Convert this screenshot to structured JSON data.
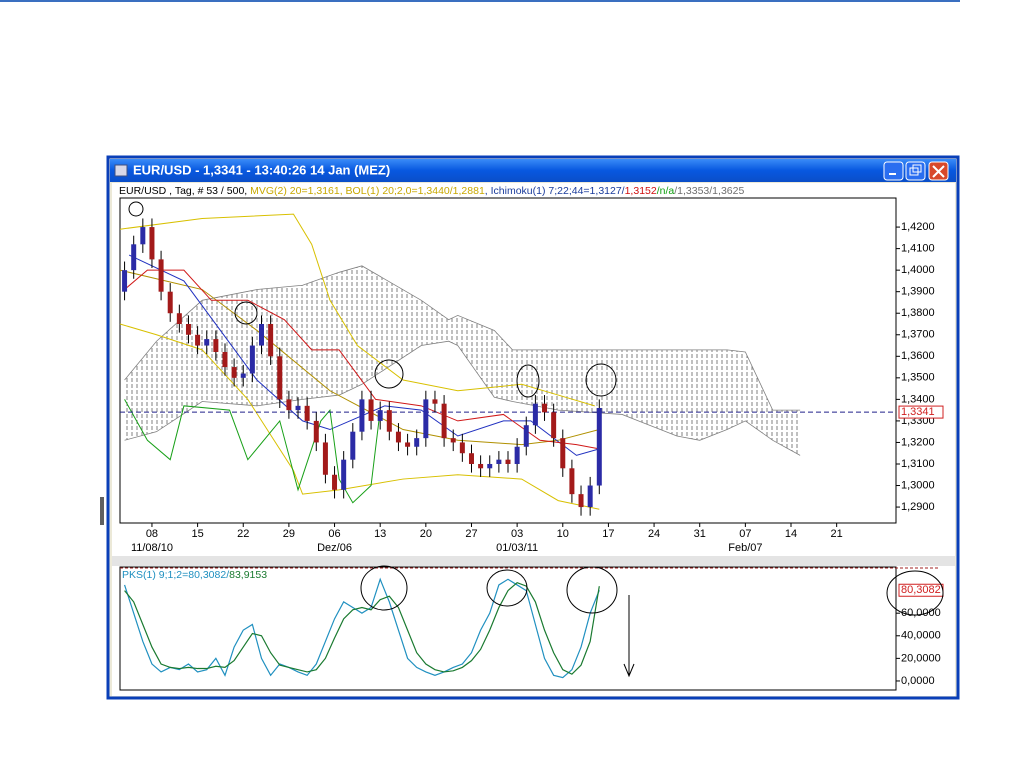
{
  "window": {
    "title": "EUR/USD - 1,3341 - 13:40:26  14 Jan (MEZ)"
  },
  "chart_data": [
    {
      "type": "candlestick",
      "header": [
        {
          "text": "EUR/USD , Tag, # 53 / 500, ",
          "color": "#000000"
        },
        {
          "text": "MVG(2) 20=1,3161, BOL(1) 20;2,0=1,3440/1,2881",
          "color": "#c8a800"
        },
        {
          "text": ", Ichimoku(1) 7;22;44=1,3127/",
          "color": "#1a3c9c"
        },
        {
          "text": "1,3152",
          "color": "#d01010"
        },
        {
          "text": "/n/a",
          "color": "#10a010"
        },
        {
          "text": "/1,3353/1,3625",
          "color": "#707070"
        }
      ],
      "x": [
        0.5,
        1.5,
        2.5,
        3.5,
        4.5,
        5.5,
        6.5,
        7.5,
        8.5,
        9.5,
        10.5,
        11.5,
        12.5,
        13.5,
        14.5,
        15.5,
        16.5,
        17.5,
        18.5,
        19.5,
        20.5,
        21.5,
        22.5,
        23.5,
        24.5,
        25.5,
        26.5,
        27.5,
        28.5,
        29.5,
        30.5,
        31.5,
        32.5,
        33.5,
        34.5,
        35.5,
        36.5,
        37.5,
        38.5,
        39.5,
        40.5,
        41.5,
        42.5,
        43.5,
        44.5,
        45.5,
        46.5,
        47.5,
        48.5,
        49.5,
        50.5,
        51.5,
        52.5
      ],
      "open": [
        1.39,
        1.4,
        1.412,
        1.42,
        1.405,
        1.39,
        1.38,
        1.375,
        1.37,
        1.365,
        1.368,
        1.362,
        1.355,
        1.35,
        1.352,
        1.365,
        1.375,
        1.36,
        1.34,
        1.335,
        1.337,
        1.33,
        1.32,
        1.305,
        1.298,
        1.312,
        1.325,
        1.34,
        1.33,
        1.335,
        1.325,
        1.32,
        1.318,
        1.322,
        1.34,
        1.338,
        1.322,
        1.32,
        1.315,
        1.31,
        1.308,
        1.31,
        1.312,
        1.31,
        1.318,
        1.328,
        1.338,
        1.334,
        1.322,
        1.308,
        1.296,
        1.29,
        1.3
      ],
      "high": [
        1.404,
        1.416,
        1.424,
        1.424,
        1.409,
        1.394,
        1.384,
        1.379,
        1.374,
        1.372,
        1.372,
        1.366,
        1.359,
        1.356,
        1.369,
        1.379,
        1.379,
        1.364,
        1.344,
        1.341,
        1.341,
        1.334,
        1.324,
        1.309,
        1.316,
        1.329,
        1.344,
        1.344,
        1.339,
        1.339,
        1.329,
        1.324,
        1.326,
        1.344,
        1.344,
        1.342,
        1.326,
        1.324,
        1.319,
        1.314,
        1.314,
        1.316,
        1.316,
        1.322,
        1.332,
        1.342,
        1.342,
        1.338,
        1.326,
        1.312,
        1.3,
        1.304,
        1.34
      ],
      "low": [
        1.386,
        1.396,
        1.408,
        1.401,
        1.386,
        1.376,
        1.371,
        1.366,
        1.361,
        1.361,
        1.358,
        1.351,
        1.346,
        1.346,
        1.348,
        1.361,
        1.356,
        1.336,
        1.331,
        1.331,
        1.326,
        1.316,
        1.301,
        1.294,
        1.294,
        1.308,
        1.321,
        1.326,
        1.326,
        1.321,
        1.316,
        1.314,
        1.314,
        1.318,
        1.334,
        1.318,
        1.316,
        1.311,
        1.306,
        1.304,
        1.304,
        1.306,
        1.306,
        1.306,
        1.314,
        1.324,
        1.33,
        1.318,
        1.304,
        1.292,
        1.286,
        1.286,
        1.296
      ],
      "close": [
        1.4,
        1.412,
        1.42,
        1.405,
        1.39,
        1.38,
        1.375,
        1.37,
        1.365,
        1.368,
        1.362,
        1.355,
        1.35,
        1.352,
        1.365,
        1.375,
        1.36,
        1.34,
        1.335,
        1.337,
        1.33,
        1.32,
        1.305,
        1.298,
        1.312,
        1.325,
        1.34,
        1.33,
        1.335,
        1.325,
        1.32,
        1.318,
        1.322,
        1.34,
        1.338,
        1.322,
        1.32,
        1.315,
        1.31,
        1.308,
        1.31,
        1.312,
        1.31,
        1.318,
        1.328,
        1.338,
        1.334,
        1.322,
        1.308,
        1.296,
        1.29,
        1.3,
        1.336
      ],
      "up_color": "#2b2ba6",
      "down_color": "#a31a1a",
      "cloud": {
        "color": "#808080",
        "x": [
          0.5,
          4,
          9,
          15,
          20,
          24,
          26.5,
          33,
          36,
          37,
          41,
          43,
          48,
          55,
          61,
          63.5,
          66.5,
          68.5,
          71.5,
          74.5
        ],
        "span_b": [
          1.349,
          1.367,
          1.386,
          1.391,
          1.393,
          1.399,
          1.402,
          1.386,
          1.377,
          1.379,
          1.372,
          1.363,
          1.363,
          1.363,
          1.363,
          1.363,
          1.363,
          1.362,
          1.335,
          1.335
        ],
        "span_a": [
          1.321,
          1.325,
          1.339,
          1.337,
          1.34,
          1.342,
          1.347,
          1.365,
          1.367,
          1.365,
          1.341,
          1.339,
          1.335,
          1.333,
          1.323,
          1.321,
          1.326,
          1.33,
          1.321,
          1.314
        ]
      },
      "lines": [
        {
          "color": "#d8c000",
          "x": [
            0,
            9,
            19,
            21,
            23,
            26,
            31,
            37,
            44,
            48,
            52
          ],
          "values": [
            1.419,
            1.424,
            1.426,
            1.412,
            1.386,
            1.365,
            1.349,
            1.344,
            1.347,
            1.342,
            1.337
          ]
        },
        {
          "color": "#d8c000",
          "x": [
            0,
            4,
            9,
            14,
            19,
            20,
            24,
            31,
            37,
            44,
            48,
            52.5
          ],
          "values": [
            1.375,
            1.37,
            1.363,
            1.34,
            1.307,
            1.296,
            1.298,
            1.303,
            1.305,
            1.303,
            1.293,
            1.289
          ]
        },
        {
          "color": "#b09000",
          "x": [
            0,
            9,
            15,
            23,
            31,
            37,
            44,
            48,
            52.5
          ],
          "values": [
            1.4,
            1.391,
            1.372,
            1.344,
            1.326,
            1.321,
            1.319,
            1.321,
            1.326
          ]
        },
        {
          "color": "#2030c0",
          "x": [
            1,
            7,
            11,
            15,
            20,
            23,
            29,
            33,
            37,
            42,
            45,
            50,
            52.5
          ],
          "values": [
            1.407,
            1.395,
            1.372,
            1.349,
            1.33,
            1.326,
            1.337,
            1.335,
            1.323,
            1.33,
            1.33,
            1.314,
            1.317
          ]
        },
        {
          "color": "#d01818",
          "x": [
            0.5,
            3,
            7,
            10,
            14,
            18,
            21,
            24,
            28,
            33,
            37,
            42,
            46,
            50,
            52.5
          ],
          "values": [
            1.391,
            1.4,
            1.4,
            1.386,
            1.386,
            1.377,
            1.363,
            1.363,
            1.34,
            1.337,
            1.33,
            1.333,
            1.321,
            1.319,
            1.317
          ]
        },
        {
          "color": "#18a018",
          "x": [
            0.5,
            3,
            5.5,
            7,
            12,
            14,
            17.5,
            19.5,
            22,
            23,
            24,
            25.5,
            27.5,
            28.5
          ],
          "values": [
            1.34,
            1.321,
            1.312,
            1.337,
            1.335,
            1.312,
            1.33,
            1.298,
            1.33,
            1.335,
            1.303,
            1.292,
            1.3,
            1.335
          ]
        }
      ],
      "last_price": {
        "value": 1.3341,
        "label": "1,3341"
      },
      "xlim": [
        0,
        85
      ],
      "ylim": [
        1.2826,
        1.4335
      ],
      "yticks": [
        {
          "value": 1.42,
          "label": "1,4200"
        },
        {
          "value": 1.41,
          "label": "1,4100"
        },
        {
          "value": 1.4,
          "label": "1,4000"
        },
        {
          "value": 1.39,
          "label": "1,3900"
        },
        {
          "value": 1.38,
          "label": "1,3800"
        },
        {
          "value": 1.37,
          "label": "1,3700"
        },
        {
          "value": 1.36,
          "label": "1,3600"
        },
        {
          "value": 1.35,
          "label": "1,3500"
        },
        {
          "value": 1.34,
          "label": "1,3400"
        },
        {
          "value": 1.33,
          "label": "1,3300"
        },
        {
          "value": 1.32,
          "label": "1,3200"
        },
        {
          "value": 1.31,
          "label": "1,3100"
        },
        {
          "value": 1.3,
          "label": "1,3000"
        },
        {
          "value": 1.29,
          "label": "1,2900"
        }
      ],
      "xticks": [
        {
          "value": 3.5,
          "label": "08"
        },
        {
          "value": 8.5,
          "label": "15"
        },
        {
          "value": 13.5,
          "label": "22"
        },
        {
          "value": 18.5,
          "label": "29"
        },
        {
          "value": 23.5,
          "label": "06"
        },
        {
          "value": 28.5,
          "label": "13"
        },
        {
          "value": 33.5,
          "label": "20"
        },
        {
          "value": 38.5,
          "label": "27"
        },
        {
          "value": 43.5,
          "label": "03"
        },
        {
          "value": 48.5,
          "label": "10"
        },
        {
          "value": 53.5,
          "label": "17"
        },
        {
          "value": 58.5,
          "label": "24"
        },
        {
          "value": 63.5,
          "label": "31"
        },
        {
          "value": 68.5,
          "label": "07"
        },
        {
          "value": 73.5,
          "label": "14"
        },
        {
          "value": 78.5,
          "label": "21"
        }
      ],
      "xticks_major": [
        {
          "value": 3.5,
          "label": "11/08/10"
        },
        {
          "value": 23.5,
          "label": "Dez/06"
        },
        {
          "value": 43.5,
          "label": "01/03/11"
        },
        {
          "value": 68.5,
          "label": "Feb/07"
        }
      ]
    },
    {
      "type": "line",
      "header": [
        {
          "text": "PKS(1) 9;1;2=80,3082/",
          "color": "#2090c0"
        },
        {
          "text": "83,9153",
          "color": "#1a7a30"
        }
      ],
      "x": [
        0.5,
        1.5,
        2.5,
        3.5,
        4.5,
        5.5,
        6.5,
        7.5,
        8.5,
        9.5,
        10.5,
        11.5,
        12.5,
        13.5,
        14.5,
        15.5,
        16.5,
        17.5,
        18.5,
        19.5,
        20.5,
        21.5,
        22.5,
        23.5,
        24.5,
        25.5,
        26.5,
        27.5,
        28.5,
        29.5,
        30.5,
        31.5,
        32.5,
        33.5,
        34.5,
        35.5,
        36.5,
        37.5,
        38.5,
        39.5,
        40.5,
        41.5,
        42.5,
        43.5,
        44.5,
        45.5,
        46.5,
        47.5,
        48.5,
        49.5,
        50.5,
        51.5,
        52.5
      ],
      "series": [
        {
          "color": "#2090c0",
          "values": [
            85,
            60,
            35,
            15,
            8,
            12,
            10,
            15,
            8,
            10,
            20,
            5,
            30,
            45,
            50,
            20,
            5,
            15,
            12,
            8,
            5,
            15,
            35,
            55,
            70,
            65,
            60,
            65,
            90,
            70,
            45,
            20,
            12,
            8,
            5,
            8,
            12,
            15,
            25,
            45,
            60,
            85,
            90,
            85,
            80,
            50,
            20,
            5,
            3,
            10,
            30,
            60,
            80.3082
          ]
        },
        {
          "color": "#1a7a30",
          "values": [
            80,
            70,
            50,
            30,
            15,
            12,
            11,
            12,
            11,
            11,
            13,
            12,
            18,
            30,
            42,
            40,
            25,
            14,
            12,
            10,
            8,
            10,
            20,
            38,
            55,
            63,
            65,
            63,
            72,
            75,
            65,
            45,
            25,
            15,
            10,
            8,
            9,
            12,
            18,
            28,
            45,
            65,
            80,
            87,
            84,
            70,
            45,
            25,
            10,
            6,
            14,
            35,
            83.9153
          ]
        }
      ],
      "last_value": {
        "value": 80.3082,
        "label": "80,3082"
      },
      "xlim": [
        0,
        85
      ],
      "ylim": [
        -8,
        100
      ],
      "yticks": [
        {
          "value": 60,
          "label": "60,0000"
        },
        {
          "value": 40,
          "label": "40,0000"
        },
        {
          "value": 20,
          "label": "20,0000"
        },
        {
          "value": 0,
          "label": "0,0000"
        }
      ]
    }
  ]
}
